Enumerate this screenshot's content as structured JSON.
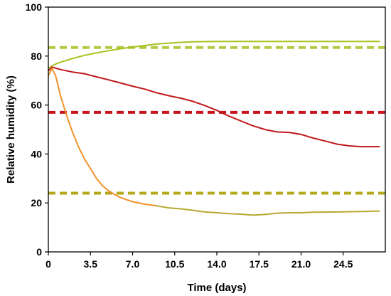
{
  "chart_data": {
    "type": "line",
    "xlabel": "Time (days)",
    "ylabel": "Relative humidity (%)",
    "xlim": [
      0,
      28
    ],
    "ylim": [
      0,
      100
    ],
    "x_ticks": [
      0,
      3.5,
      7.0,
      10.5,
      14.0,
      17.5,
      21.0,
      24.5
    ],
    "x_tick_labels": [
      "0",
      "3.5",
      "7.0",
      "10.5",
      "14.0",
      "17.5",
      "21.0",
      "24.5"
    ],
    "y_ticks": [
      0,
      20,
      40,
      60,
      80,
      100
    ],
    "y_tick_labels": [
      "0",
      "20",
      "40",
      "60",
      "80",
      "100"
    ],
    "grid": false,
    "legend": "none",
    "series": [
      {
        "color": "#a6c21e",
        "x": [
          0,
          0.5,
          1,
          2,
          3,
          4,
          5,
          6,
          7,
          8,
          9,
          10,
          11,
          12,
          14,
          16,
          18,
          20,
          22,
          24,
          26,
          27.5
        ],
        "y": [
          75,
          76.5,
          77.5,
          79,
          80.3,
          81.3,
          82.2,
          83,
          83.7,
          84.3,
          84.9,
          85.3,
          85.6,
          85.8,
          86,
          86,
          86,
          86,
          86,
          86,
          86,
          86
        ]
      },
      {
        "color": "#c0181c",
        "x": [
          0,
          0.3,
          1,
          2,
          3,
          4,
          5,
          6,
          7,
          8,
          9,
          10,
          11,
          12,
          13,
          14,
          15,
          16,
          17,
          18,
          19,
          20,
          21,
          22,
          23,
          24,
          25,
          26,
          27.5
        ],
        "y": [
          74,
          75.5,
          74.5,
          73.5,
          72.8,
          71.5,
          70.3,
          69,
          67.7,
          66.5,
          65,
          63.8,
          62.8,
          61.5,
          59.8,
          57.8,
          55.5,
          53.5,
          51.5,
          50,
          49,
          48.8,
          48,
          46.5,
          45.3,
          44,
          43.3,
          43,
          43
        ]
      },
      {
        "color": "#f0922a",
        "x": [
          0,
          0.3,
          0.6,
          1,
          1.5,
          2,
          2.5,
          3,
          3.5,
          4,
          4.5,
          5,
          5.5,
          6,
          6.5,
          7,
          8,
          9
        ],
        "y": [
          72,
          75,
          72,
          64,
          56,
          49,
          43,
          38,
          34,
          30,
          27,
          25,
          23.5,
          22.2,
          21.3,
          20.5,
          19.5,
          18.8
        ]
      },
      {
        "color": "#b8a830",
        "x": [
          9,
          10,
          11,
          12,
          13,
          14,
          15,
          16,
          17,
          18,
          19,
          20,
          21,
          22,
          24,
          26,
          27.5
        ],
        "y": [
          18.8,
          18,
          17.6,
          17,
          16.3,
          16,
          15.6,
          15.4,
          15,
          15.3,
          15.8,
          16,
          16,
          16.2,
          16.3,
          16.5,
          16.7
        ]
      }
    ],
    "reference_lines": [
      {
        "y": 83.5,
        "color": "#b4c840",
        "style": "dashed"
      },
      {
        "y": 57,
        "color": "#c8141e",
        "style": "dashed"
      },
      {
        "y": 24,
        "color": "#b4a81c",
        "style": "dashed"
      }
    ]
  }
}
